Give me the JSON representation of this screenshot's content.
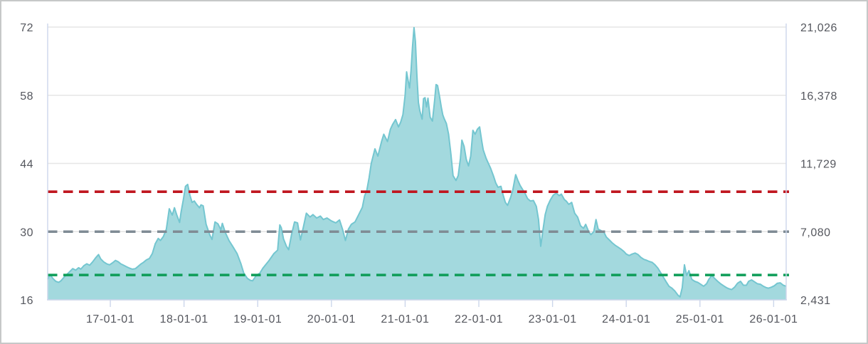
{
  "chart_data": {
    "type": "area",
    "title": "",
    "xlabel": "",
    "ylabel_left": "",
    "ylabel_right": "",
    "legend": "off",
    "grid": "horizontal",
    "x_axis": {
      "min": 2016.15,
      "max": 2026.17,
      "tick_years": [
        2017,
        2018,
        2019,
        2020,
        2021,
        2022,
        2023,
        2024,
        2025,
        2026
      ],
      "tick_labels": [
        "17-01-01",
        "18-01-01",
        "19-01-01",
        "20-01-01",
        "21-01-01",
        "22-01-01",
        "23-01-01",
        "24-01-01",
        "25-01-01",
        "26-01-01"
      ]
    },
    "y_axis_left": {
      "min": 16,
      "max": 72,
      "ticks": [
        16,
        30,
        44,
        58,
        72
      ],
      "tick_labels": [
        "16",
        "30",
        "44",
        "58",
        "72"
      ]
    },
    "y_axis_right": {
      "ticks_at_left_values": [
        16,
        30,
        44,
        58,
        72
      ],
      "tick_labels": [
        "2,431",
        "7,080",
        "11,729",
        "16,378",
        "21,026"
      ]
    },
    "plot_lines": [
      {
        "name": "upper-reference",
        "value": 38.2,
        "color": "#c0161f",
        "style": "dashed"
      },
      {
        "name": "middle-reference",
        "value": 30.0,
        "color": "#7f8b94",
        "style": "dashed"
      },
      {
        "name": "lower-reference",
        "value": 21.1,
        "color": "#0e9d58",
        "style": "dashed"
      }
    ],
    "series": [
      {
        "name": "value",
        "points": [
          [
            2016.15,
            20.2
          ],
          [
            2016.18,
            21.2
          ],
          [
            2016.22,
            20.4
          ],
          [
            2016.26,
            19.8
          ],
          [
            2016.3,
            19.6
          ],
          [
            2016.33,
            19.9
          ],
          [
            2016.37,
            20.6
          ],
          [
            2016.41,
            21.2
          ],
          [
            2016.45,
            21.8
          ],
          [
            2016.49,
            22.4
          ],
          [
            2016.53,
            22.1
          ],
          [
            2016.57,
            22.6
          ],
          [
            2016.6,
            22.3
          ],
          [
            2016.64,
            23.0
          ],
          [
            2016.68,
            23.4
          ],
          [
            2016.72,
            23.1
          ],
          [
            2016.76,
            23.8
          ],
          [
            2016.8,
            24.6
          ],
          [
            2016.84,
            25.3
          ],
          [
            2016.87,
            24.4
          ],
          [
            2016.91,
            23.8
          ],
          [
            2016.95,
            23.4
          ],
          [
            2016.99,
            23.2
          ],
          [
            2017.03,
            23.6
          ],
          [
            2017.07,
            24.1
          ],
          [
            2017.11,
            23.8
          ],
          [
            2017.14,
            23.4
          ],
          [
            2017.18,
            23.1
          ],
          [
            2017.22,
            22.8
          ],
          [
            2017.26,
            22.5
          ],
          [
            2017.3,
            22.3
          ],
          [
            2017.34,
            22.4
          ],
          [
            2017.38,
            22.9
          ],
          [
            2017.41,
            23.3
          ],
          [
            2017.45,
            23.7
          ],
          [
            2017.49,
            24.2
          ],
          [
            2017.53,
            24.5
          ],
          [
            2017.57,
            25.5
          ],
          [
            2017.61,
            27.5
          ],
          [
            2017.65,
            28.6
          ],
          [
            2017.68,
            28.2
          ],
          [
            2017.72,
            29.0
          ],
          [
            2017.76,
            30.5
          ],
          [
            2017.8,
            34.7
          ],
          [
            2017.84,
            33.4
          ],
          [
            2017.87,
            34.9
          ],
          [
            2017.9,
            33.5
          ],
          [
            2017.94,
            31.9
          ],
          [
            2017.96,
            34.0
          ],
          [
            2017.99,
            36.5
          ],
          [
            2018.02,
            39.3
          ],
          [
            2018.05,
            39.7
          ],
          [
            2018.08,
            37.5
          ],
          [
            2018.11,
            36.0
          ],
          [
            2018.14,
            36.3
          ],
          [
            2018.17,
            35.6
          ],
          [
            2018.21,
            34.9
          ],
          [
            2018.23,
            35.5
          ],
          [
            2018.26,
            35.3
          ],
          [
            2018.3,
            31.5
          ],
          [
            2018.35,
            29.3
          ],
          [
            2018.38,
            28.4
          ],
          [
            2018.42,
            32.0
          ],
          [
            2018.46,
            31.6
          ],
          [
            2018.5,
            30.4
          ],
          [
            2018.52,
            31.7
          ],
          [
            2018.56,
            29.8
          ],
          [
            2018.61,
            28.2
          ],
          [
            2018.66,
            27.0
          ],
          [
            2018.72,
            25.5
          ],
          [
            2018.77,
            23.5
          ],
          [
            2018.81,
            21.5
          ],
          [
            2018.86,
            20.4
          ],
          [
            2018.9,
            20.0
          ],
          [
            2018.93,
            19.9
          ],
          [
            2018.98,
            21.0
          ],
          [
            2019.03,
            21.5
          ],
          [
            2019.07,
            22.5
          ],
          [
            2019.15,
            24.0
          ],
          [
            2019.22,
            25.5
          ],
          [
            2019.27,
            26.2
          ],
          [
            2019.3,
            31.4
          ],
          [
            2019.32,
            30.8
          ],
          [
            2019.35,
            28.5
          ],
          [
            2019.39,
            27.0
          ],
          [
            2019.42,
            26.3
          ],
          [
            2019.46,
            29.5
          ],
          [
            2019.5,
            32.0
          ],
          [
            2019.54,
            31.8
          ],
          [
            2019.58,
            28.3
          ],
          [
            2019.62,
            31.0
          ],
          [
            2019.66,
            33.8
          ],
          [
            2019.71,
            33.0
          ],
          [
            2019.75,
            33.5
          ],
          [
            2019.8,
            32.8
          ],
          [
            2019.85,
            33.2
          ],
          [
            2019.89,
            32.5
          ],
          [
            2019.94,
            32.8
          ],
          [
            2020.0,
            32.2
          ],
          [
            2020.06,
            31.8
          ],
          [
            2020.11,
            32.4
          ],
          [
            2020.15,
            30.5
          ],
          [
            2020.19,
            28.2
          ],
          [
            2020.23,
            30.5
          ],
          [
            2020.27,
            31.5
          ],
          [
            2020.32,
            32.0
          ],
          [
            2020.37,
            33.5
          ],
          [
            2020.42,
            35.0
          ],
          [
            2020.45,
            37.3
          ],
          [
            2020.48,
            38.5
          ],
          [
            2020.51,
            41.0
          ],
          [
            2020.54,
            44.0
          ],
          [
            2020.59,
            47.0
          ],
          [
            2020.63,
            45.5
          ],
          [
            2020.68,
            48.5
          ],
          [
            2020.71,
            50.0
          ],
          [
            2020.76,
            48.5
          ],
          [
            2020.8,
            51.0
          ],
          [
            2020.83,
            52.0
          ],
          [
            2020.87,
            53.0
          ],
          [
            2020.91,
            51.5
          ],
          [
            2020.94,
            52.5
          ],
          [
            2020.97,
            54.0
          ],
          [
            2021.0,
            58.0
          ],
          [
            2021.02,
            62.8
          ],
          [
            2021.04,
            61.0
          ],
          [
            2021.06,
            59.5
          ],
          [
            2021.08,
            63.0
          ],
          [
            2021.1,
            68.0
          ],
          [
            2021.12,
            71.9
          ],
          [
            2021.14,
            69.0
          ],
          [
            2021.16,
            62.0
          ],
          [
            2021.18,
            56.5
          ],
          [
            2021.2,
            54.8
          ],
          [
            2021.23,
            53.1
          ],
          [
            2021.25,
            57.3
          ],
          [
            2021.27,
            57.5
          ],
          [
            2021.29,
            55.6
          ],
          [
            2021.31,
            57.4
          ],
          [
            2021.34,
            53.5
          ],
          [
            2021.37,
            52.7
          ],
          [
            2021.4,
            57.0
          ],
          [
            2021.42,
            60.2
          ],
          [
            2021.44,
            60.0
          ],
          [
            2021.47,
            57.5
          ],
          [
            2021.49,
            55.6
          ],
          [
            2021.51,
            54.0
          ],
          [
            2021.53,
            53.2
          ],
          [
            2021.56,
            52.2
          ],
          [
            2021.59,
            50.0
          ],
          [
            2021.62,
            46.0
          ],
          [
            2021.65,
            41.5
          ],
          [
            2021.69,
            40.5
          ],
          [
            2021.72,
            41.5
          ],
          [
            2021.75,
            45.0
          ],
          [
            2021.77,
            48.8
          ],
          [
            2021.8,
            47.5
          ],
          [
            2021.83,
            44.8
          ],
          [
            2021.86,
            43.5
          ],
          [
            2021.89,
            45.5
          ],
          [
            2021.92,
            50.8
          ],
          [
            2021.95,
            50.0
          ],
          [
            2021.98,
            51.0
          ],
          [
            2022.01,
            51.5
          ],
          [
            2022.04,
            48.5
          ],
          [
            2022.06,
            46.8
          ],
          [
            2022.1,
            45.0
          ],
          [
            2022.13,
            44.0
          ],
          [
            2022.16,
            43.0
          ],
          [
            2022.2,
            41.4
          ],
          [
            2022.23,
            40.0
          ],
          [
            2022.26,
            39.1
          ],
          [
            2022.3,
            39.3
          ],
          [
            2022.33,
            37.5
          ],
          [
            2022.36,
            36.0
          ],
          [
            2022.39,
            35.4
          ],
          [
            2022.43,
            37.0
          ],
          [
            2022.46,
            38.5
          ],
          [
            2022.5,
            41.7
          ],
          [
            2022.53,
            40.5
          ],
          [
            2022.56,
            39.5
          ],
          [
            2022.6,
            38.5
          ],
          [
            2022.62,
            38.1
          ],
          [
            2022.66,
            36.8
          ],
          [
            2022.7,
            36.3
          ],
          [
            2022.74,
            36.4
          ],
          [
            2022.78,
            35.2
          ],
          [
            2022.81,
            32.5
          ],
          [
            2022.84,
            27.0
          ],
          [
            2022.87,
            30.3
          ],
          [
            2022.9,
            33.5
          ],
          [
            2022.93,
            35.2
          ],
          [
            2022.97,
            36.5
          ],
          [
            2023.01,
            37.5
          ],
          [
            2023.05,
            37.9
          ],
          [
            2023.09,
            37.4
          ],
          [
            2023.12,
            37.7
          ],
          [
            2023.16,
            36.6
          ],
          [
            2023.19,
            36.2
          ],
          [
            2023.22,
            35.6
          ],
          [
            2023.26,
            36.0
          ],
          [
            2023.3,
            33.8
          ],
          [
            2023.34,
            33.0
          ],
          [
            2023.38,
            31.2
          ],
          [
            2023.42,
            30.7
          ],
          [
            2023.45,
            31.5
          ],
          [
            2023.49,
            30.0
          ],
          [
            2023.52,
            29.4
          ],
          [
            2023.56,
            30.0
          ],
          [
            2023.59,
            32.5
          ],
          [
            2023.62,
            30.5
          ],
          [
            2023.66,
            30.2
          ],
          [
            2023.7,
            29.8
          ],
          [
            2023.73,
            28.9
          ],
          [
            2023.77,
            28.3
          ],
          [
            2023.81,
            27.7
          ],
          [
            2023.85,
            27.2
          ],
          [
            2023.89,
            26.8
          ],
          [
            2023.93,
            26.4
          ],
          [
            2023.97,
            25.9
          ],
          [
            2024.0,
            25.4
          ],
          [
            2024.04,
            25.1
          ],
          [
            2024.08,
            25.4
          ],
          [
            2024.12,
            25.6
          ],
          [
            2024.16,
            25.3
          ],
          [
            2024.2,
            24.7
          ],
          [
            2024.24,
            24.3
          ],
          [
            2024.28,
            24.1
          ],
          [
            2024.31,
            23.9
          ],
          [
            2024.35,
            23.7
          ],
          [
            2024.39,
            23.2
          ],
          [
            2024.43,
            22.5
          ],
          [
            2024.47,
            21.5
          ],
          [
            2024.51,
            20.5
          ],
          [
            2024.55,
            19.5
          ],
          [
            2024.58,
            18.8
          ],
          [
            2024.62,
            18.4
          ],
          [
            2024.66,
            17.8
          ],
          [
            2024.7,
            17.0
          ],
          [
            2024.73,
            16.6
          ],
          [
            2024.76,
            18.5
          ],
          [
            2024.79,
            23.2
          ],
          [
            2024.82,
            21.0
          ],
          [
            2024.85,
            22.0
          ],
          [
            2024.89,
            20.2
          ],
          [
            2024.93,
            19.8
          ],
          [
            2024.97,
            19.6
          ],
          [
            2025.01,
            19.2
          ],
          [
            2025.05,
            18.8
          ],
          [
            2025.09,
            19.3
          ],
          [
            2025.12,
            20.2
          ],
          [
            2025.16,
            21.0
          ],
          [
            2025.2,
            20.4
          ],
          [
            2025.24,
            19.8
          ],
          [
            2025.28,
            19.3
          ],
          [
            2025.32,
            18.9
          ],
          [
            2025.36,
            18.5
          ],
          [
            2025.39,
            18.3
          ],
          [
            2025.43,
            18.1
          ],
          [
            2025.47,
            18.6
          ],
          [
            2025.51,
            19.4
          ],
          [
            2025.55,
            19.8
          ],
          [
            2025.59,
            19.0
          ],
          [
            2025.63,
            19.0
          ],
          [
            2025.66,
            19.8
          ],
          [
            2025.7,
            20.1
          ],
          [
            2025.74,
            19.7
          ],
          [
            2025.78,
            19.3
          ],
          [
            2025.82,
            19.2
          ],
          [
            2025.86,
            18.8
          ],
          [
            2025.9,
            18.5
          ],
          [
            2025.93,
            18.4
          ],
          [
            2025.97,
            18.6
          ],
          [
            2026.01,
            18.9
          ],
          [
            2026.05,
            19.4
          ],
          [
            2026.09,
            19.5
          ],
          [
            2026.13,
            19.0
          ],
          [
            2026.17,
            18.8
          ]
        ]
      }
    ],
    "colors": {
      "area_fill": "#a3d9de",
      "area_line": "#74c6d0",
      "gridline": "#e6e6e6",
      "axis_line": "#ccd6eb",
      "label_text": "#55575e",
      "background": "#ffffff"
    }
  }
}
